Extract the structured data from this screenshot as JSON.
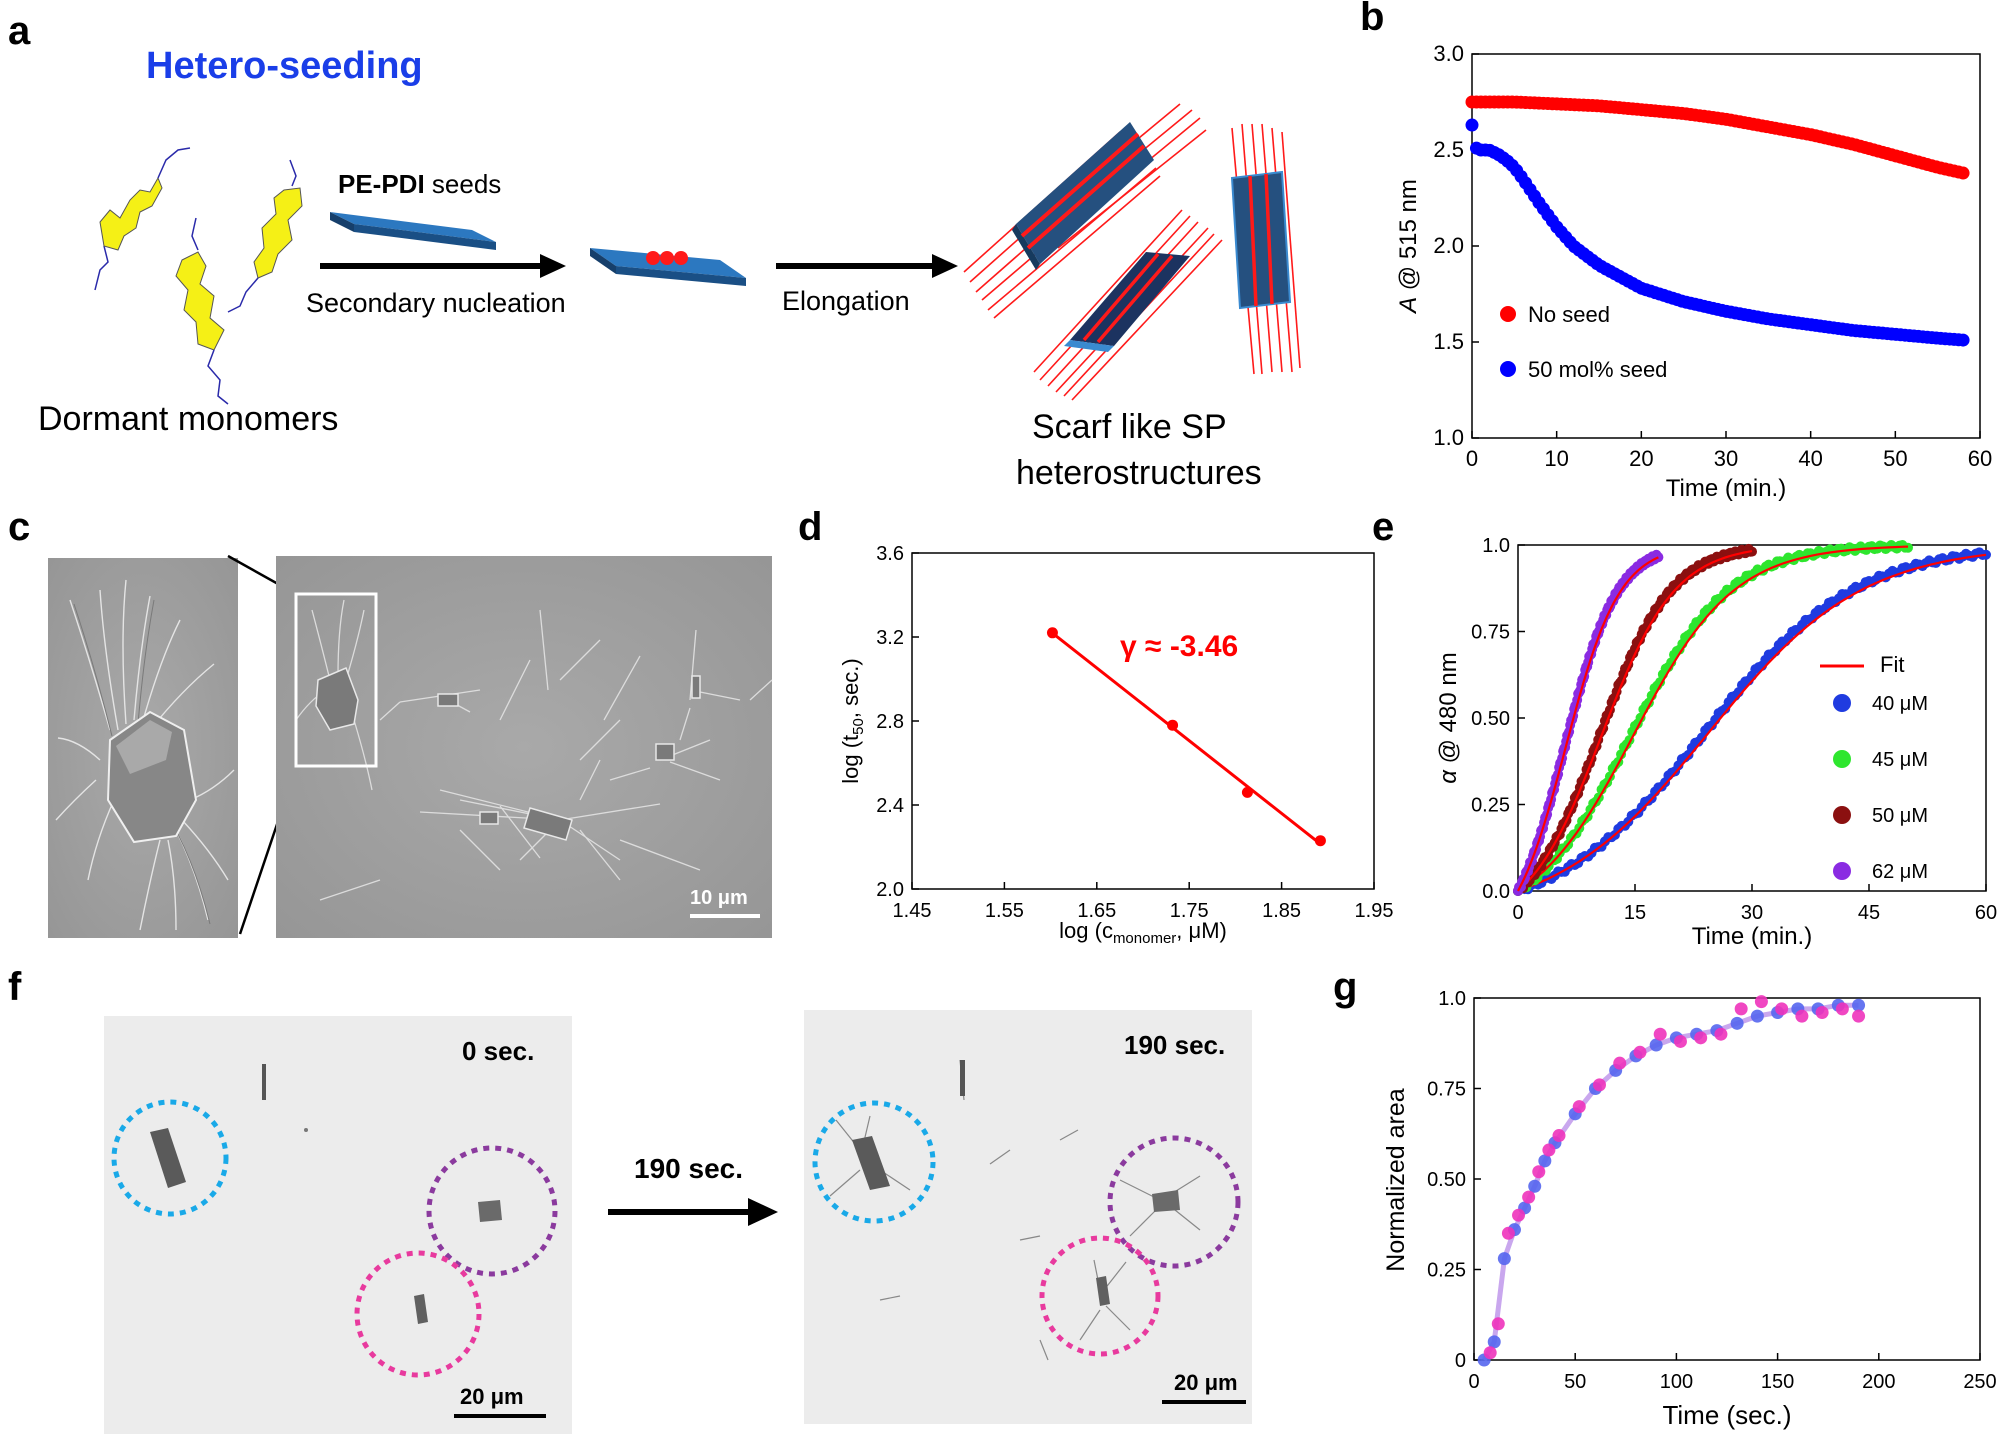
{
  "panel_labels": {
    "a": "a",
    "b": "b",
    "c": "c",
    "d": "d",
    "e": "e",
    "f": "f",
    "g": "g"
  },
  "panel_a": {
    "title": "Hetero-seeding",
    "seeds_bold": "PE-PDI",
    "seeds_rest": " seeds",
    "step1": "Secondary nucleation",
    "step2": "Elongation",
    "left_caption": "Dormant monomers",
    "right_caption_1": "Scarf like SP",
    "right_caption_2": "heterostructures",
    "colors": {
      "title": "#1a3ee8",
      "monomer": "#f5f016",
      "seed": "#1f5f9e",
      "fiber": "#ff1a1a"
    }
  },
  "panel_c": {
    "scalebar": "10 μm"
  },
  "panel_f": {
    "time0": "0 sec.",
    "time1": "190 sec.",
    "arrow_label": "190 sec.",
    "scalebar": "20 μm",
    "circle_colors": [
      "#19a9e8",
      "#8b3a9e",
      "#e83a9e"
    ]
  },
  "chart_data": [
    {
      "panel": "b",
      "type": "scatter",
      "ylabel_italic": "A",
      "ylabel_rest": " @ 515 nm",
      "xlabel": "Time (min.)",
      "xlim": [
        0,
        60
      ],
      "ylim": [
        1.0,
        3.0
      ],
      "xticks": [
        "0",
        "10",
        "20",
        "30",
        "40",
        "50",
        "60"
      ],
      "yticks": [
        "1.0",
        "1.5",
        "2.0",
        "2.5",
        "3.0"
      ],
      "legend": [
        "No seed",
        "50 mol% seed"
      ],
      "series": [
        {
          "name": "No seed",
          "color": "#ff0000",
          "x": [
            0,
            5,
            10,
            15,
            20,
            25,
            30,
            35,
            40,
            45,
            50,
            55,
            58
          ],
          "y": [
            2.75,
            2.75,
            2.74,
            2.73,
            2.71,
            2.69,
            2.66,
            2.62,
            2.58,
            2.53,
            2.47,
            2.41,
            2.38
          ]
        },
        {
          "name": "50 mol% seed",
          "color": "#0000ff",
          "x": [
            0,
            0.5,
            1,
            2,
            3,
            4,
            5,
            6,
            8,
            10,
            12,
            15,
            20,
            25,
            30,
            35,
            40,
            45,
            50,
            55,
            58
          ],
          "y": [
            2.63,
            2.51,
            2.5,
            2.5,
            2.48,
            2.45,
            2.41,
            2.35,
            2.22,
            2.1,
            2.0,
            1.9,
            1.78,
            1.71,
            1.66,
            1.62,
            1.59,
            1.56,
            1.54,
            1.52,
            1.51
          ]
        }
      ]
    },
    {
      "panel": "d",
      "type": "scatter",
      "ylabel_main": "log (t",
      "ylabel_sub": "50",
      "ylabel_end": ", sec.)",
      "xlabel_main": "log (c",
      "xlabel_sub": "monomer",
      "xlabel_end": ", μM)",
      "xlim": [
        1.45,
        1.95
      ],
      "ylim": [
        2.0,
        3.6
      ],
      "xticks": [
        "1.45",
        "1.55",
        "1.65",
        "1.75",
        "1.85",
        "1.95"
      ],
      "yticks": [
        "2.0",
        "2.4",
        "2.8",
        "3.2",
        "3.6"
      ],
      "annotation": "γ ≈ -3.46",
      "series": [
        {
          "name": "data",
          "color": "#ff0000",
          "x": [
            1.602,
            1.732,
            1.813,
            1.892
          ],
          "y": [
            3.22,
            2.78,
            2.46,
            2.23
          ]
        }
      ]
    },
    {
      "panel": "e",
      "type": "line",
      "ylabel_italic": "α",
      "ylabel_rest": " @ 480 nm",
      "xlabel": "Time (min.)",
      "xlim": [
        0,
        60
      ],
      "ylim": [
        0,
        1.0
      ],
      "xticks": [
        "0",
        "15",
        "30",
        "45",
        "60"
      ],
      "yticks": [
        "0.0",
        "0.25",
        "0.50",
        "0.75",
        "1.0"
      ],
      "legend_fit": "Fit",
      "series": [
        {
          "name": "40 μM",
          "color": "#1f3be0",
          "k": 0.105,
          "t50": 24,
          "tmax": 60
        },
        {
          "name": "45 μM",
          "color": "#2ee62e",
          "k": 0.16,
          "t50": 14.5,
          "tmax": 50
        },
        {
          "name": "50 μM",
          "color": "#8b1010",
          "k": 0.22,
          "t50": 10.5,
          "tmax": 30
        },
        {
          "name": "62 μM",
          "color": "#8a2be2",
          "k": 0.3,
          "t50": 6,
          "tmax": 18
        }
      ]
    },
    {
      "panel": "g",
      "type": "scatter",
      "ylabel": "Normalized area",
      "xlabel": "Time (sec.)",
      "xlim": [
        0,
        250
      ],
      "ylim": [
        0,
        1.0
      ],
      "xticks": [
        "0",
        "50",
        "100",
        "150",
        "200",
        "250"
      ],
      "yticks": [
        "0",
        "0.25",
        "0.50",
        "0.75",
        "1.0"
      ],
      "series": [
        {
          "name": "blue",
          "color": "#5566ee",
          "x": [
            5,
            10,
            15,
            20,
            25,
            30,
            35,
            40,
            50,
            60,
            70,
            80,
            90,
            100,
            110,
            120,
            130,
            140,
            150,
            160,
            170,
            180,
            190
          ],
          "y": [
            0,
            0.05,
            0.28,
            0.36,
            0.42,
            0.48,
            0.55,
            0.6,
            0.68,
            0.75,
            0.8,
            0.84,
            0.87,
            0.89,
            0.9,
            0.91,
            0.93,
            0.95,
            0.96,
            0.97,
            0.97,
            0.98,
            0.98
          ]
        },
        {
          "name": "magenta",
          "color": "#ee33bb",
          "x": [
            8,
            12,
            17,
            22,
            27,
            32,
            37,
            42,
            52,
            62,
            72,
            82,
            92,
            102,
            112,
            122,
            132,
            142,
            152,
            162,
            172,
            182,
            190
          ],
          "y": [
            0.02,
            0.1,
            0.35,
            0.4,
            0.45,
            0.52,
            0.58,
            0.62,
            0.7,
            0.76,
            0.82,
            0.85,
            0.9,
            0.88,
            0.89,
            0.9,
            0.97,
            0.99,
            0.97,
            0.95,
            0.96,
            0.97,
            0.95
          ]
        }
      ]
    }
  ]
}
